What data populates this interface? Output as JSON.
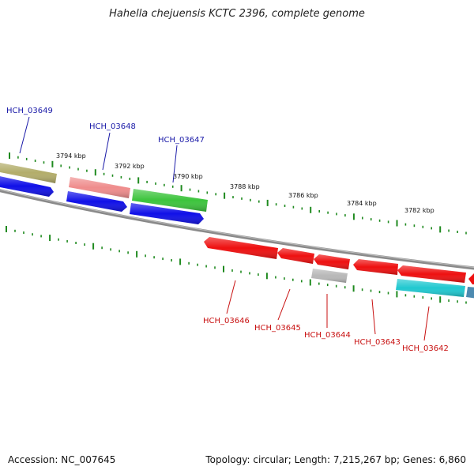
{
  "title": "Hahella chejuensis KCTC 2396, complete genome",
  "footer": {
    "accession": "Accession: NC_007645",
    "summary": "Topology: circular; Length: 7,215,267 bp; Genes: 6,860"
  },
  "scale_labels": [
    "3794 kbp",
    "3792 kbp",
    "3790 kbp",
    "3788 kbp",
    "3786 kbp",
    "3784 kbp",
    "3782 kbp"
  ],
  "gene_labels_top": [
    "HCH_03649",
    "HCH_03648",
    "HCH_03647"
  ],
  "gene_labels_bottom": [
    "HCH_03646",
    "HCH_03645",
    "HCH_03644",
    "HCH_03643",
    "HCH_03642"
  ],
  "colors": {
    "label_top": "#1a1aa8",
    "label_bottom": "#c81010",
    "backbone": "#808080",
    "tick": "#1f8a1f",
    "olive": "#b3ad6a",
    "blue": "#1010e8",
    "pink": "#ef8c8c",
    "green": "#3cc43c",
    "red": "#ee1010",
    "grey": "#b8b8b8",
    "cyan": "#20c8d0",
    "steel": "#4d8ab0"
  }
}
